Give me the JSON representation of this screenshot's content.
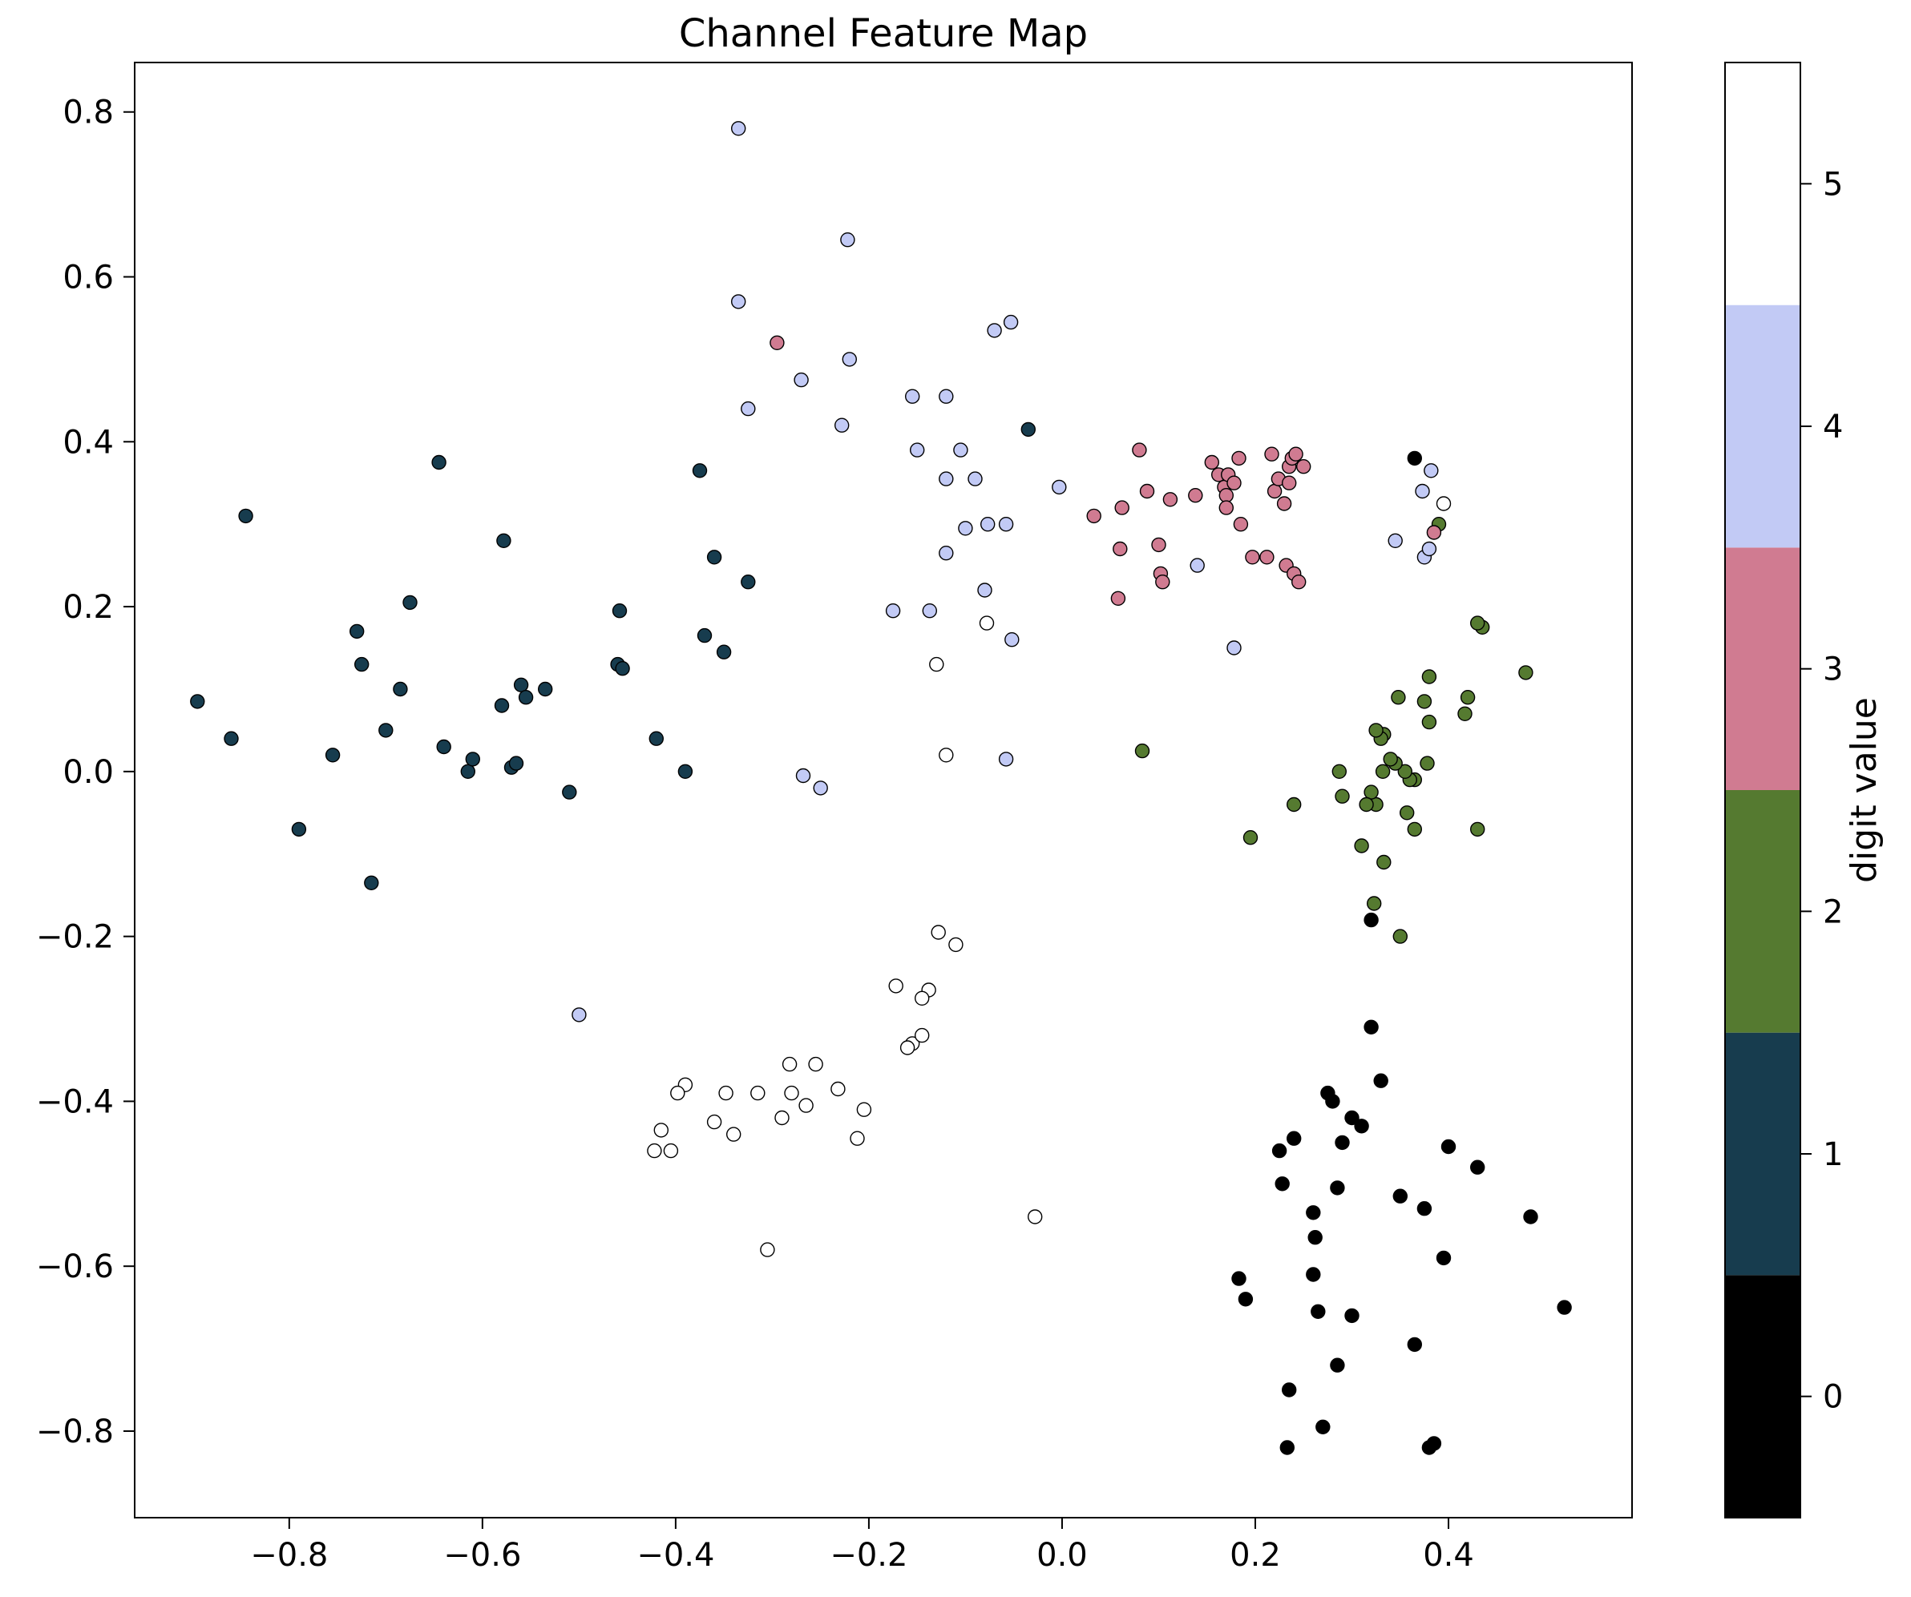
{
  "chart_data": {
    "type": "scatter",
    "title": "Channel Feature Map",
    "xlabel": "",
    "ylabel": "",
    "xlim": [
      -0.96,
      0.59
    ],
    "ylim": [
      -0.905,
      0.86
    ],
    "xticks": [
      -0.8,
      -0.6,
      -0.4,
      -0.2,
      0.0,
      0.2,
      0.4
    ],
    "xtick_labels": [
      "−0.8",
      "−0.6",
      "−0.4",
      "−0.2",
      "0.0",
      "0.2",
      "0.4"
    ],
    "yticks": [
      -0.8,
      -0.6,
      -0.4,
      -0.2,
      0.0,
      0.2,
      0.4,
      0.6,
      0.8
    ],
    "ytick_labels": [
      "−0.8",
      "−0.6",
      "−0.4",
      "−0.2",
      "0.0",
      "0.2",
      "0.4",
      "0.6",
      "0.8"
    ],
    "grid": false,
    "colorbar": {
      "label": "digit value",
      "range": [
        -0.5,
        5.5
      ],
      "ticks": [
        0,
        1,
        2,
        3,
        4,
        5
      ],
      "tick_labels": [
        "0",
        "1",
        "2",
        "3",
        "4",
        "5"
      ],
      "colors": [
        "#000000",
        "#173c4e",
        "#557a30",
        "#d07b91",
        "#c2caf5",
        "#ffffff"
      ]
    },
    "points": [
      [
        0.52,
        -0.65,
        0
      ],
      [
        0.485,
        -0.54,
        0
      ],
      [
        0.43,
        -0.48,
        0
      ],
      [
        0.4,
        -0.455,
        0
      ],
      [
        0.395,
        -0.59,
        0
      ],
      [
        0.385,
        -0.815,
        0
      ],
      [
        0.38,
        -0.82,
        0
      ],
      [
        0.375,
        -0.53,
        0
      ],
      [
        0.365,
        -0.695,
        0
      ],
      [
        0.35,
        -0.515,
        0
      ],
      [
        0.33,
        -0.375,
        0
      ],
      [
        0.32,
        -0.31,
        0
      ],
      [
        0.31,
        -0.43,
        0
      ],
      [
        0.3,
        -0.42,
        0
      ],
      [
        0.3,
        -0.66,
        0
      ],
      [
        0.29,
        -0.45,
        0
      ],
      [
        0.285,
        -0.505,
        0
      ],
      [
        0.285,
        -0.72,
        0
      ],
      [
        0.28,
        -0.4,
        0
      ],
      [
        0.275,
        -0.39,
        0
      ],
      [
        0.27,
        -0.795,
        0
      ],
      [
        0.265,
        -0.655,
        0
      ],
      [
        0.262,
        -0.565,
        0
      ],
      [
        0.26,
        -0.535,
        0
      ],
      [
        0.26,
        -0.61,
        0
      ],
      [
        0.24,
        -0.445,
        0
      ],
      [
        0.235,
        -0.75,
        0
      ],
      [
        0.233,
        -0.82,
        0
      ],
      [
        0.228,
        -0.5,
        0
      ],
      [
        0.225,
        -0.46,
        0
      ],
      [
        0.19,
        -0.64,
        0
      ],
      [
        0.183,
        -0.615,
        0
      ],
      [
        0.32,
        -0.18,
        0
      ],
      [
        0.365,
        0.38,
        0
      ],
      [
        -0.895,
        0.085,
        1
      ],
      [
        -0.86,
        0.04,
        1
      ],
      [
        -0.845,
        0.31,
        1
      ],
      [
        -0.79,
        -0.07,
        1
      ],
      [
        -0.755,
        0.02,
        1
      ],
      [
        -0.73,
        0.17,
        1
      ],
      [
        -0.725,
        0.13,
        1
      ],
      [
        -0.715,
        -0.135,
        1
      ],
      [
        -0.7,
        0.05,
        1
      ],
      [
        -0.685,
        0.1,
        1
      ],
      [
        -0.675,
        0.205,
        1
      ],
      [
        -0.645,
        0.375,
        1
      ],
      [
        -0.64,
        0.03,
        1
      ],
      [
        -0.615,
        0.0,
        1
      ],
      [
        -0.61,
        0.015,
        1
      ],
      [
        -0.58,
        0.08,
        1
      ],
      [
        -0.578,
        0.28,
        1
      ],
      [
        -0.57,
        0.005,
        1
      ],
      [
        -0.565,
        0.01,
        1
      ],
      [
        -0.56,
        0.105,
        1
      ],
      [
        -0.555,
        0.09,
        1
      ],
      [
        -0.535,
        0.1,
        1
      ],
      [
        -0.51,
        -0.025,
        1
      ],
      [
        -0.46,
        0.13,
        1
      ],
      [
        -0.458,
        0.195,
        1
      ],
      [
        -0.455,
        0.125,
        1
      ],
      [
        -0.42,
        0.04,
        1
      ],
      [
        -0.39,
        0.0,
        1
      ],
      [
        -0.375,
        0.365,
        1
      ],
      [
        -0.37,
        0.165,
        1
      ],
      [
        -0.36,
        0.26,
        1
      ],
      [
        -0.35,
        0.145,
        1
      ],
      [
        -0.325,
        0.23,
        1
      ],
      [
        -0.035,
        0.415,
        1
      ],
      [
        0.48,
        0.12,
        2
      ],
      [
        0.435,
        0.175,
        2
      ],
      [
        0.43,
        0.18,
        2
      ],
      [
        0.43,
        -0.07,
        2
      ],
      [
        0.42,
        0.09,
        2
      ],
      [
        0.417,
        0.07,
        2
      ],
      [
        0.39,
        0.3,
        2
      ],
      [
        0.38,
        0.115,
        2
      ],
      [
        0.38,
        0.06,
        2
      ],
      [
        0.378,
        0.01,
        2
      ],
      [
        0.375,
        0.085,
        2
      ],
      [
        0.365,
        -0.01,
        2
      ],
      [
        0.365,
        -0.07,
        2
      ],
      [
        0.36,
        -0.01,
        2
      ],
      [
        0.357,
        -0.05,
        2
      ],
      [
        0.355,
        0.0,
        2
      ],
      [
        0.35,
        -0.2,
        2
      ],
      [
        0.348,
        0.09,
        2
      ],
      [
        0.345,
        0.01,
        2
      ],
      [
        0.34,
        0.015,
        2
      ],
      [
        0.333,
        0.045,
        2
      ],
      [
        0.332,
        0.0,
        2
      ],
      [
        0.33,
        0.04,
        2
      ],
      [
        0.325,
        -0.04,
        2
      ],
      [
        0.325,
        0.05,
        2
      ],
      [
        0.323,
        -0.16,
        2
      ],
      [
        0.32,
        -0.025,
        2
      ],
      [
        0.315,
        -0.04,
        2
      ],
      [
        0.31,
        -0.09,
        2
      ],
      [
        0.333,
        -0.11,
        2
      ],
      [
        0.29,
        -0.03,
        2
      ],
      [
        0.287,
        0.0,
        2
      ],
      [
        0.24,
        -0.04,
        2
      ],
      [
        0.195,
        -0.08,
        2
      ],
      [
        0.083,
        0.025,
        2
      ],
      [
        -0.295,
        0.52,
        3
      ],
      [
        0.033,
        0.31,
        3
      ],
      [
        0.058,
        0.21,
        3
      ],
      [
        0.06,
        0.27,
        3
      ],
      [
        0.062,
        0.32,
        3
      ],
      [
        0.08,
        0.39,
        3
      ],
      [
        0.088,
        0.34,
        3
      ],
      [
        0.1,
        0.275,
        3
      ],
      [
        0.102,
        0.24,
        3
      ],
      [
        0.104,
        0.23,
        3
      ],
      [
        0.112,
        0.33,
        3
      ],
      [
        0.138,
        0.335,
        3
      ],
      [
        0.155,
        0.375,
        3
      ],
      [
        0.162,
        0.36,
        3
      ],
      [
        0.168,
        0.345,
        3
      ],
      [
        0.17,
        0.335,
        3
      ],
      [
        0.17,
        0.32,
        3
      ],
      [
        0.172,
        0.36,
        3
      ],
      [
        0.178,
        0.35,
        3
      ],
      [
        0.183,
        0.38,
        3
      ],
      [
        0.185,
        0.3,
        3
      ],
      [
        0.197,
        0.26,
        3
      ],
      [
        0.212,
        0.26,
        3
      ],
      [
        0.217,
        0.385,
        3
      ],
      [
        0.22,
        0.34,
        3
      ],
      [
        0.224,
        0.355,
        3
      ],
      [
        0.23,
        0.325,
        3
      ],
      [
        0.232,
        0.25,
        3
      ],
      [
        0.235,
        0.35,
        3
      ],
      [
        0.235,
        0.37,
        3
      ],
      [
        0.238,
        0.38,
        3
      ],
      [
        0.24,
        0.24,
        3
      ],
      [
        0.242,
        0.385,
        3
      ],
      [
        0.245,
        0.23,
        3
      ],
      [
        0.25,
        0.37,
        3
      ],
      [
        0.385,
        0.29,
        3
      ],
      [
        -0.335,
        0.78,
        4
      ],
      [
        -0.335,
        0.57,
        4
      ],
      [
        -0.325,
        0.44,
        4
      ],
      [
        -0.27,
        0.475,
        4
      ],
      [
        -0.228,
        0.42,
        4
      ],
      [
        -0.222,
        0.645,
        4
      ],
      [
        -0.22,
        0.5,
        4
      ],
      [
        -0.155,
        0.455,
        4
      ],
      [
        -0.15,
        0.39,
        4
      ],
      [
        -0.12,
        0.455,
        4
      ],
      [
        -0.12,
        0.355,
        4
      ],
      [
        -0.12,
        0.265,
        4
      ],
      [
        -0.105,
        0.39,
        4
      ],
      [
        -0.1,
        0.295,
        4
      ],
      [
        -0.09,
        0.355,
        4
      ],
      [
        -0.08,
        0.22,
        4
      ],
      [
        -0.077,
        0.3,
        4
      ],
      [
        -0.07,
        0.535,
        4
      ],
      [
        -0.058,
        0.3,
        4
      ],
      [
        -0.053,
        0.545,
        4
      ],
      [
        -0.052,
        0.16,
        4
      ],
      [
        -0.003,
        0.345,
        4
      ],
      [
        -0.175,
        0.195,
        4
      ],
      [
        -0.137,
        0.195,
        4
      ],
      [
        0.14,
        0.25,
        4
      ],
      [
        0.178,
        0.15,
        4
      ],
      [
        0.345,
        0.28,
        4
      ],
      [
        0.373,
        0.34,
        4
      ],
      [
        0.375,
        0.26,
        4
      ],
      [
        0.38,
        0.27,
        4
      ],
      [
        0.382,
        0.365,
        4
      ],
      [
        -0.268,
        -0.005,
        4
      ],
      [
        -0.25,
        -0.02,
        4
      ],
      [
        -0.058,
        0.015,
        4
      ],
      [
        -0.5,
        -0.295,
        4
      ],
      [
        0.395,
        0.325,
        5
      ],
      [
        -0.13,
        0.13,
        5
      ],
      [
        -0.12,
        0.02,
        5
      ],
      [
        -0.078,
        0.18,
        5
      ],
      [
        -0.028,
        -0.54,
        5
      ],
      [
        -0.128,
        -0.195,
        5
      ],
      [
        -0.11,
        -0.21,
        5
      ],
      [
        -0.138,
        -0.265,
        5
      ],
      [
        -0.145,
        -0.275,
        5
      ],
      [
        -0.155,
        -0.33,
        5
      ],
      [
        -0.145,
        -0.32,
        5
      ],
      [
        -0.16,
        -0.335,
        5
      ],
      [
        -0.172,
        -0.26,
        5
      ],
      [
        -0.205,
        -0.41,
        5
      ],
      [
        -0.212,
        -0.445,
        5
      ],
      [
        -0.232,
        -0.385,
        5
      ],
      [
        -0.255,
        -0.355,
        5
      ],
      [
        -0.265,
        -0.405,
        5
      ],
      [
        -0.28,
        -0.39,
        5
      ],
      [
        -0.282,
        -0.355,
        5
      ],
      [
        -0.29,
        -0.42,
        5
      ],
      [
        -0.305,
        -0.58,
        5
      ],
      [
        -0.315,
        -0.39,
        5
      ],
      [
        -0.34,
        -0.44,
        5
      ],
      [
        -0.348,
        -0.39,
        5
      ],
      [
        -0.36,
        -0.425,
        5
      ],
      [
        -0.39,
        -0.38,
        5
      ],
      [
        -0.398,
        -0.39,
        5
      ],
      [
        -0.405,
        -0.46,
        5
      ],
      [
        -0.415,
        -0.435,
        5
      ],
      [
        -0.422,
        -0.46,
        5
      ]
    ]
  }
}
